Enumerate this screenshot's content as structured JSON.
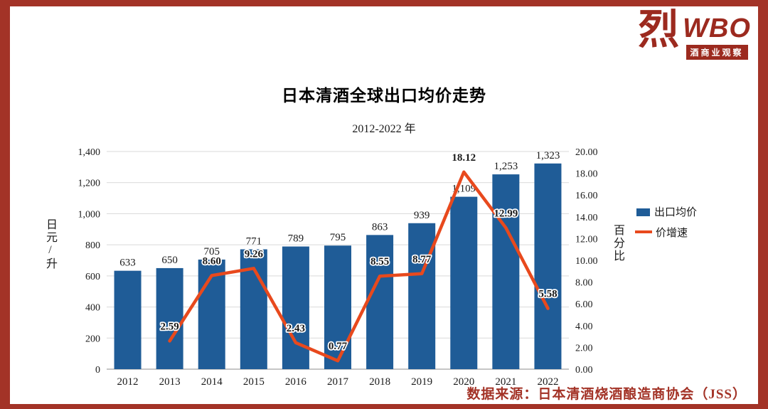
{
  "logo": {
    "glyph": "烈",
    "wbo": "WBO",
    "subtext": "酒商业观察"
  },
  "title": "日本清酒全球出口均价走势",
  "subtitle": "2012-2022 年",
  "source": "数据来源：日本清酒烧酒酿造商协会（JSS）",
  "colors": {
    "frame_red": "#a33327",
    "logo_red": "#9c2a1f",
    "bar_blue": "#1f5c97",
    "line_orange": "#e8491d",
    "gridline_gray": "#d9d9d9",
    "axis_gray": "#8c8c8c"
  },
  "chart_data": {
    "type": "bar",
    "title": "日本清酒全球出口均价走势",
    "subtitle": "2012-2022 年",
    "categories": [
      "2012",
      "2013",
      "2014",
      "2015",
      "2016",
      "2017",
      "2018",
      "2019",
      "2020",
      "2021",
      "2022"
    ],
    "series": [
      {
        "name": "出口均价",
        "type": "bar",
        "axis": "left",
        "color": "#1f5c97",
        "values": [
          633,
          650,
          705,
          771,
          789,
          795,
          863,
          939,
          1109,
          1253,
          1323
        ]
      },
      {
        "name": "价增速",
        "type": "line",
        "axis": "right",
        "color": "#e8491d",
        "values": [
          null,
          2.59,
          8.6,
          9.26,
          2.43,
          0.77,
          8.55,
          8.77,
          18.12,
          12.99,
          5.58
        ]
      }
    ],
    "left_axis": {
      "title": "日元/升",
      "min": 0,
      "max": 1400,
      "step": 200
    },
    "right_axis": {
      "title": "百分比",
      "min": 0,
      "max": 20,
      "step": 2
    },
    "legend_position": "right",
    "grid": true
  }
}
